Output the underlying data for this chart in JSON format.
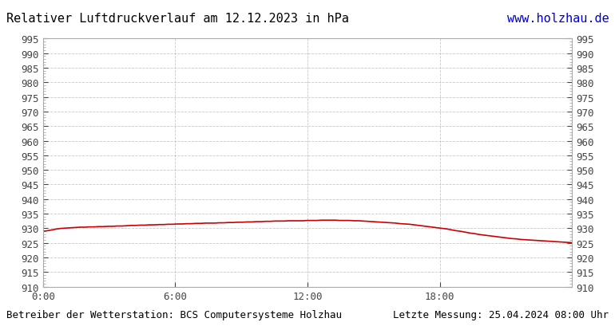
{
  "title": "Relativer Luftdruckverlauf am 12.12.2023 in hPa",
  "title_color": "#000000",
  "url_text": "www.holzhau.de",
  "url_color": "#0000cc",
  "footer_left": "Betreiber der Wetterstation: BCS Computersysteme Holzhau",
  "footer_right": "Letzte Messung: 25.04.2024 08:00 Uhr",
  "footer_color": "#000000",
  "background_color": "#ffffff",
  "plot_bg_color": "#ffffff",
  "grid_color": "#bbbbbb",
  "line_color": "#cc0000",
  "line_width": 1.2,
  "ylim": [
    910,
    995
  ],
  "ytick_step": 5,
  "xtick_labels": [
    "0:00",
    "6:00",
    "12:00",
    "18:00"
  ],
  "xtick_positions": [
    0,
    360,
    720,
    1080
  ],
  "xmax": 1440,
  "pressure_data": [
    929.0,
    929.2,
    929.5,
    929.8,
    930.0,
    930.1,
    930.2,
    930.3,
    930.4,
    930.4,
    930.5,
    930.5,
    930.6,
    930.6,
    930.7,
    930.7,
    930.8,
    930.8,
    930.9,
    931.0,
    931.0,
    931.1,
    931.1,
    931.2,
    931.2,
    931.3,
    931.3,
    931.4,
    931.4,
    931.5,
    931.5,
    931.6,
    931.6,
    931.7,
    931.7,
    931.8,
    931.8,
    931.8,
    931.9,
    931.9,
    932.0,
    932.0,
    932.1,
    932.1,
    932.2,
    932.2,
    932.3,
    932.3,
    932.4,
    932.4,
    932.5,
    932.5,
    932.5,
    932.6,
    932.6,
    932.6,
    932.6,
    932.7,
    932.7,
    932.7,
    932.8,
    932.8,
    932.8,
    932.8,
    932.7,
    932.7,
    932.7,
    932.6,
    932.6,
    932.5,
    932.4,
    932.3,
    932.2,
    932.1,
    932.0,
    931.9,
    931.8,
    931.6,
    931.5,
    931.4,
    931.2,
    931.0,
    930.8,
    930.6,
    930.4,
    930.2,
    930.0,
    929.8,
    929.5,
    929.2,
    929.0,
    928.7,
    928.4,
    928.2,
    927.9,
    927.7,
    927.5,
    927.3,
    927.1,
    926.9,
    926.7,
    926.5,
    926.4,
    926.2,
    926.1,
    926.0,
    925.9,
    925.8,
    925.7,
    925.6,
    925.5,
    925.4,
    925.3,
    925.2,
    925.1
  ],
  "font_family": "monospace",
  "tick_fontsize": 9,
  "title_fontsize": 11,
  "footer_fontsize": 9
}
